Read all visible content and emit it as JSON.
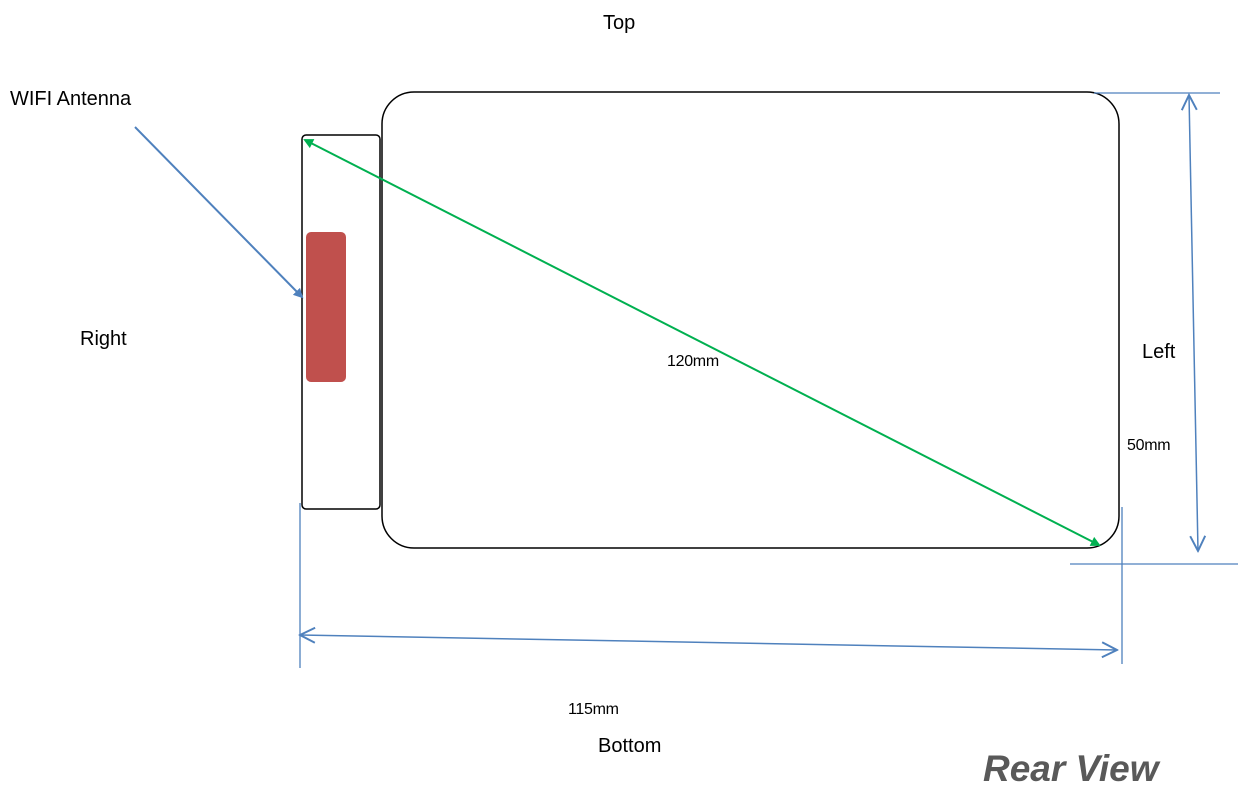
{
  "labels": {
    "top": "Top",
    "bottom": "Bottom",
    "right": "Right",
    "left": "Left",
    "wifi_antenna": "WIFI Antenna",
    "view_title": "Rear View"
  },
  "dimensions": {
    "diagonal": "120mm",
    "height": "50mm",
    "width": "115mm"
  },
  "colors": {
    "outline": "#000000",
    "dimension_line": "#4f81bd",
    "diagonal_arrow": "#00b050",
    "antenna": "#c0504d",
    "title": "#595959"
  }
}
